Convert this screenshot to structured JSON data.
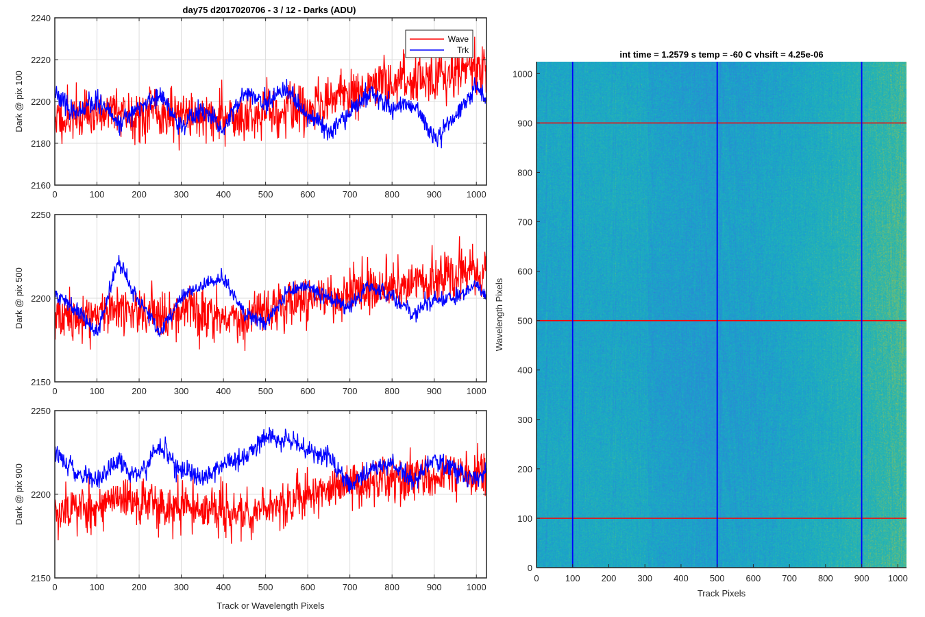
{
  "figure_title": "day75 d2017020706 - 3 / 12 - Darks (ADU)",
  "colors": {
    "wave": "#ff0000",
    "trk": "#0000ff",
    "grid": "#dcdcdc",
    "axis": "#262626"
  },
  "chart_data": [
    {
      "type": "line",
      "ylabel": "Dark @ pix 100",
      "xlim": [
        0,
        1024
      ],
      "ylim": [
        2160,
        2240
      ],
      "xticks": [
        0,
        100,
        200,
        300,
        400,
        500,
        600,
        700,
        800,
        900,
        1000
      ],
      "yticks": [
        2160,
        2180,
        2200,
        2220,
        2240
      ],
      "grid": true,
      "legend": {
        "placement": "top-right",
        "entries": [
          "Wave",
          "Trk"
        ]
      },
      "x": [
        0,
        50,
        100,
        150,
        200,
        250,
        300,
        350,
        400,
        450,
        500,
        550,
        600,
        650,
        700,
        750,
        800,
        850,
        900,
        950,
        1000,
        1024
      ],
      "series": [
        {
          "name": "Wave",
          "color": "#ff0000",
          "noise": 10,
          "seed": 11,
          "values": [
            2192,
            2193,
            2194,
            2196,
            2194,
            2195,
            2194,
            2193,
            2193,
            2192,
            2195,
            2196,
            2197,
            2200,
            2204,
            2207,
            2209,
            2211,
            2212,
            2214,
            2216,
            2214
          ]
        },
        {
          "name": "Trk",
          "color": "#0000ff",
          "noise": 4,
          "seed": 23,
          "values": [
            2205,
            2193,
            2200,
            2190,
            2197,
            2203,
            2188,
            2196,
            2186,
            2205,
            2198,
            2205,
            2193,
            2186,
            2195,
            2204,
            2196,
            2199,
            2182,
            2193,
            2208,
            2200
          ]
        }
      ]
    },
    {
      "type": "line",
      "ylabel": "Dark @ pix 500",
      "xlim": [
        0,
        1024
      ],
      "ylim": [
        2150,
        2250
      ],
      "xticks": [
        0,
        100,
        200,
        300,
        400,
        500,
        600,
        700,
        800,
        900,
        1000
      ],
      "yticks": [
        2150,
        2200,
        2250
      ],
      "grid": true,
      "x": [
        0,
        50,
        100,
        150,
        200,
        250,
        300,
        350,
        400,
        450,
        500,
        550,
        600,
        650,
        700,
        750,
        800,
        850,
        900,
        950,
        1000,
        1024
      ],
      "series": [
        {
          "name": "Wave",
          "color": "#ff0000",
          "noise": 12,
          "seed": 37,
          "values": [
            2188,
            2189,
            2191,
            2192,
            2193,
            2192,
            2193,
            2192,
            2190,
            2189,
            2194,
            2196,
            2198,
            2200,
            2203,
            2205,
            2207,
            2209,
            2210,
            2212,
            2214,
            2212
          ]
        },
        {
          "name": "Trk",
          "color": "#0000ff",
          "noise": 4,
          "seed": 41,
          "values": [
            2202,
            2195,
            2178,
            2222,
            2198,
            2180,
            2200,
            2208,
            2212,
            2190,
            2185,
            2203,
            2208,
            2200,
            2195,
            2208,
            2201,
            2190,
            2200,
            2198,
            2210,
            2200
          ]
        }
      ]
    },
    {
      "type": "line",
      "ylabel": "Dark @ pix 900",
      "xlabel": "Track or Wavelength Pixels",
      "xlim": [
        0,
        1024
      ],
      "ylim": [
        2150,
        2250
      ],
      "xticks": [
        0,
        100,
        200,
        300,
        400,
        500,
        600,
        700,
        800,
        900,
        1000
      ],
      "yticks": [
        2150,
        2200,
        2250
      ],
      "grid": true,
      "x": [
        0,
        50,
        100,
        150,
        200,
        250,
        300,
        350,
        400,
        450,
        500,
        550,
        600,
        650,
        700,
        750,
        800,
        850,
        900,
        950,
        1000,
        1024
      ],
      "series": [
        {
          "name": "Wave",
          "color": "#ff0000",
          "noise": 12,
          "seed": 53,
          "values": [
            2191,
            2192,
            2193,
            2195,
            2195,
            2194,
            2193,
            2192,
            2188,
            2188,
            2192,
            2196,
            2200,
            2203,
            2206,
            2207,
            2209,
            2210,
            2210,
            2211,
            2212,
            2212
          ]
        },
        {
          "name": "Trk",
          "color": "#0000ff",
          "noise": 5,
          "seed": 67,
          "values": [
            2225,
            2212,
            2208,
            2218,
            2210,
            2230,
            2213,
            2210,
            2218,
            2222,
            2235,
            2232,
            2226,
            2223,
            2205,
            2215,
            2218,
            2208,
            2222,
            2214,
            2210,
            2215
          ]
        }
      ]
    },
    {
      "type": "heatmap",
      "title": "int time = 1.2579 s    temp = -60 C    vhsift = 4.25e-06",
      "xlabel": "Track Pixels",
      "ylabel": "Wavelength Pixels",
      "xlim": [
        0,
        1024
      ],
      "ylim": [
        0,
        1024
      ],
      "xticks": [
        0,
        100,
        200,
        300,
        400,
        500,
        600,
        700,
        800,
        900,
        1000
      ],
      "yticks": [
        0,
        100,
        200,
        300,
        400,
        500,
        600,
        700,
        800,
        900,
        1000
      ],
      "colormap": [
        "#2a88d6",
        "#19a8c6",
        "#2ab6ae",
        "#7cbd6a",
        "#c4b93c"
      ],
      "horizontal_lines": {
        "color": "#ff0000",
        "values": [
          100,
          500,
          900
        ]
      },
      "vertical_lines": {
        "color": "#0000ff",
        "values": [
          100,
          500,
          900
        ]
      }
    }
  ]
}
